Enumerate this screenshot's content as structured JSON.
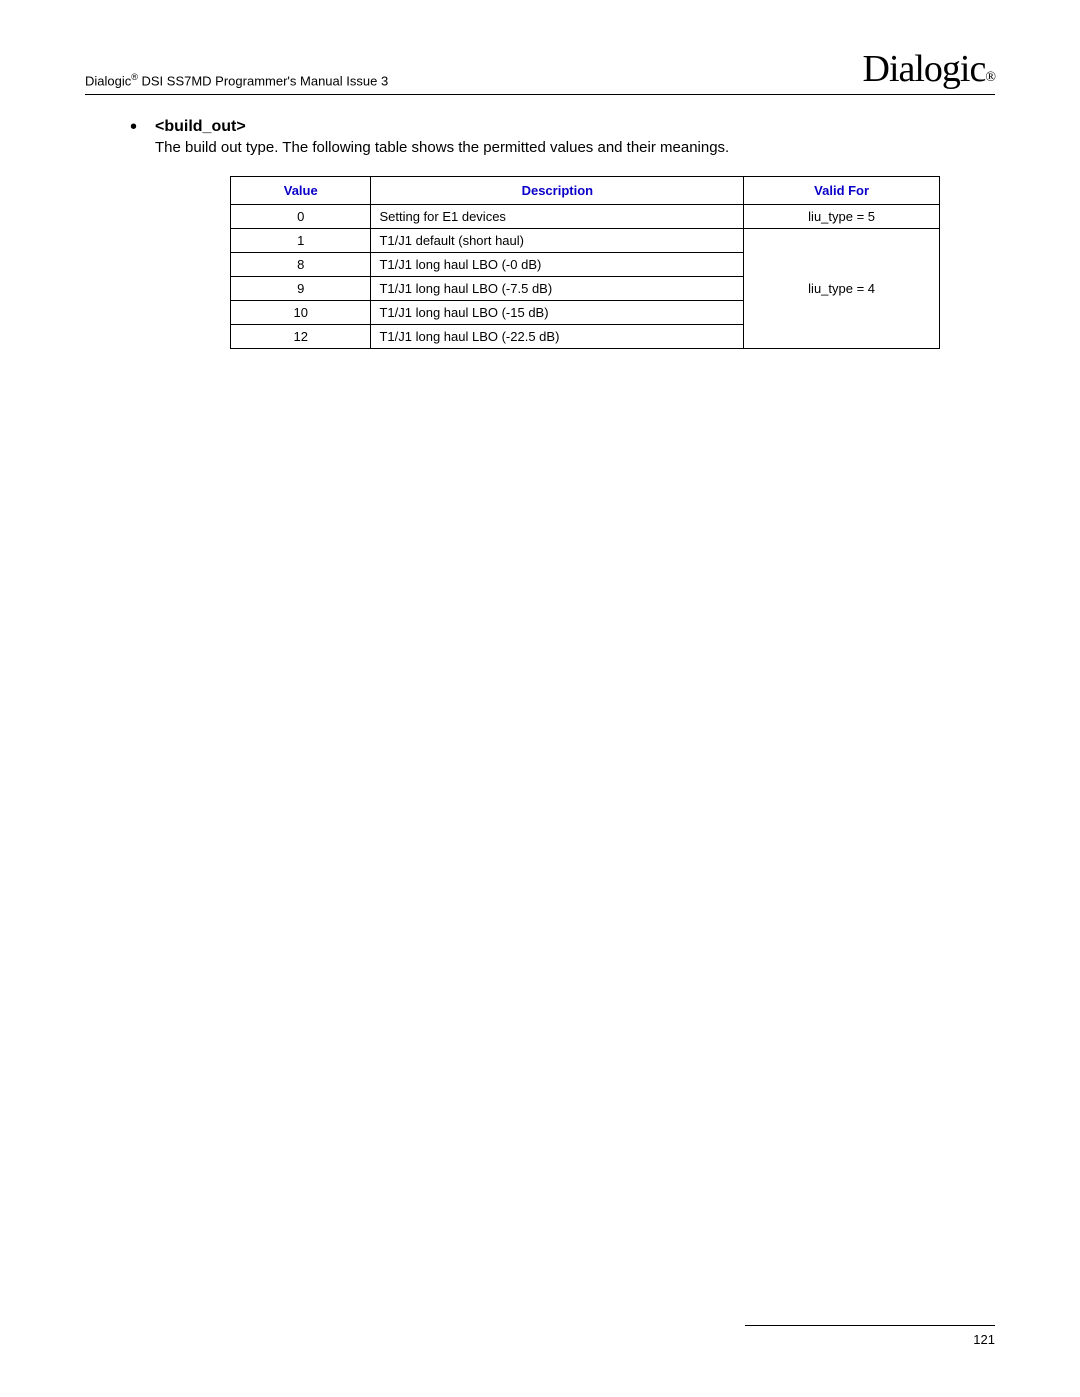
{
  "header": {
    "doc_title_prefix": "Dialogic",
    "doc_title_suffix": " DSI SS7MD Programmer's Manual  Issue 3",
    "logo_text": "Dialogic",
    "logo_reg": "®"
  },
  "section": {
    "bullet_heading": "<build_out>",
    "body_text": "The build out type. The following table shows the permitted values and their meanings."
  },
  "table": {
    "columns": [
      "Value",
      "Description",
      "Valid For"
    ],
    "groups": [
      {
        "valid_for": "liu_type = 5",
        "rows": [
          {
            "value": "0",
            "description": "Setting for E1 devices"
          }
        ]
      },
      {
        "valid_for": "liu_type = 4",
        "rows": [
          {
            "value": "1",
            "description": "T1/J1 default (short haul)"
          },
          {
            "value": "8",
            "description": "T1/J1 long haul LBO (-0 dB)"
          },
          {
            "value": "9",
            "description": "T1/J1 long haul LBO (-7.5 dB)"
          },
          {
            "value": "10",
            "description": "T1/J1 long haul LBO (-15 dB)"
          },
          {
            "value": "12",
            "description": "T1/J1 long haul LBO (-22.5 dB)"
          }
        ]
      }
    ]
  },
  "footer": {
    "page_number": "121"
  }
}
